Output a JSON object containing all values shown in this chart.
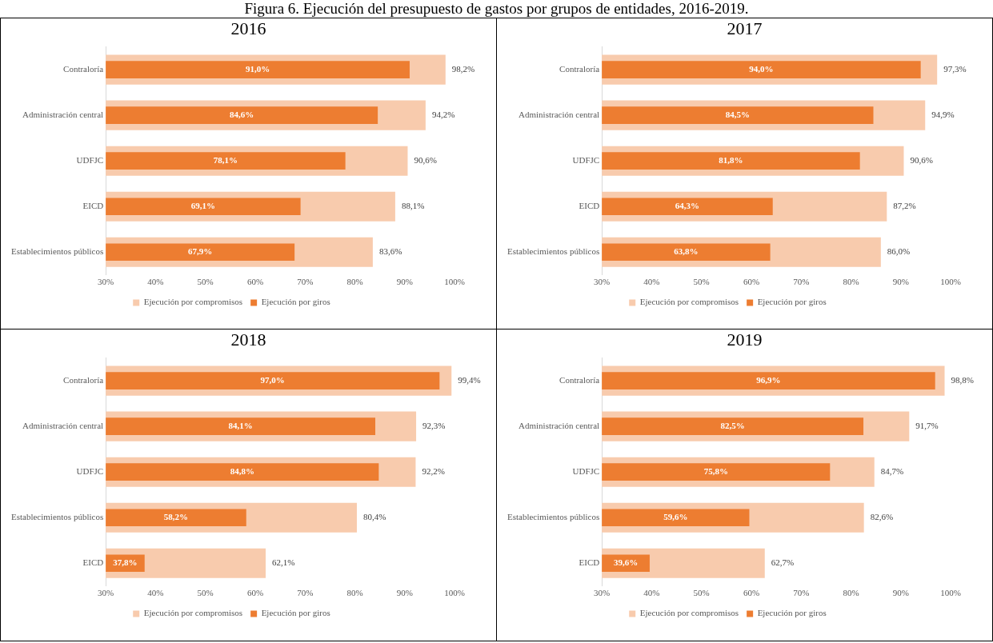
{
  "chart_data": [
    {
      "type": "bar",
      "orientation": "horizontal",
      "title": "2016",
      "annotations": [
        "Figura 6. Ejecución del presupuesto de gastos por grupos de entidades, 2016-2019."
      ],
      "categories": [
        "Contraloría",
        "Administración central",
        "UDFJC",
        "EICD",
        "Establecimientos públicos"
      ],
      "series": [
        {
          "name": "Ejecución por compromisos",
          "color": "#f8cbad",
          "values": [
            98.2,
            94.2,
            90.6,
            88.1,
            83.6
          ],
          "value_labels": [
            "98,2%",
            "94,2%",
            "90,6%",
            "88,1%",
            "83,6%"
          ]
        },
        {
          "name": "Ejecución por giros",
          "color": "#ed7d31",
          "values": [
            91.0,
            84.6,
            78.1,
            69.1,
            67.9
          ],
          "value_labels": [
            "91,0%",
            "84,6%",
            "78,1%",
            "69,1%",
            "67,9%"
          ]
        }
      ],
      "xlim": [
        30,
        100
      ],
      "xticks": [
        {
          "value": 30,
          "label": "30%"
        },
        {
          "value": 40,
          "label": "40%"
        },
        {
          "value": 50,
          "label": "50%"
        },
        {
          "value": 60,
          "label": "60%"
        },
        {
          "value": 70,
          "label": "70%"
        },
        {
          "value": 80,
          "label": "80%"
        },
        {
          "value": 90,
          "label": "90%"
        },
        {
          "value": 100,
          "label": "100%"
        }
      ],
      "grid": false,
      "legend": "bottom"
    },
    {
      "type": "bar",
      "orientation": "horizontal",
      "title": "2017",
      "categories": [
        "Contraloría",
        "Administración central",
        "UDFJC",
        "EICD",
        "Establecimientos públicos"
      ],
      "series": [
        {
          "name": "Ejecución por compromisos",
          "color": "#f8cbad",
          "values": [
            97.3,
            94.9,
            90.6,
            87.2,
            86.0
          ],
          "value_labels": [
            "97,3%",
            "94,9%",
            "90,6%",
            "87,2%",
            "86,0%"
          ]
        },
        {
          "name": "Ejecución por giros",
          "color": "#ed7d31",
          "values": [
            94.0,
            84.5,
            81.8,
            64.3,
            63.8
          ],
          "value_labels": [
            "94,0%",
            "84,5%",
            "81,8%",
            "64,3%",
            "63,8%"
          ]
        }
      ],
      "xlim": [
        30,
        100
      ],
      "xticks": [
        {
          "value": 30,
          "label": "30%"
        },
        {
          "value": 40,
          "label": "40%"
        },
        {
          "value": 50,
          "label": "50%"
        },
        {
          "value": 60,
          "label": "60%"
        },
        {
          "value": 70,
          "label": "70%"
        },
        {
          "value": 80,
          "label": "80%"
        },
        {
          "value": 90,
          "label": "90%"
        },
        {
          "value": 100,
          "label": "100%"
        }
      ],
      "grid": false,
      "legend": "bottom"
    },
    {
      "type": "bar",
      "orientation": "horizontal",
      "title": "2018",
      "categories": [
        "Contraloría",
        "Administración central",
        "UDFJC",
        "Establecimientos públicos",
        "EICD"
      ],
      "series": [
        {
          "name": "Ejecución por compromisos",
          "color": "#f8cbad",
          "values": [
            99.4,
            92.3,
            92.2,
            80.4,
            62.1
          ],
          "value_labels": [
            "99,4%",
            "92,3%",
            "92,2%",
            "80,4%",
            "62,1%"
          ]
        },
        {
          "name": "Ejecución por giros",
          "color": "#ed7d31",
          "values": [
            97.0,
            84.1,
            84.8,
            58.2,
            37.8
          ],
          "value_labels": [
            "97,0%",
            "84,1%",
            "84,8%",
            "58,2%",
            "37,8%"
          ]
        }
      ],
      "xlim": [
        30,
        100
      ],
      "xticks": [
        {
          "value": 30,
          "label": "30%"
        },
        {
          "value": 40,
          "label": "40%"
        },
        {
          "value": 50,
          "label": "50%"
        },
        {
          "value": 60,
          "label": "60%"
        },
        {
          "value": 70,
          "label": "70%"
        },
        {
          "value": 80,
          "label": "80%"
        },
        {
          "value": 90,
          "label": "90%"
        },
        {
          "value": 100,
          "label": "100%"
        }
      ],
      "grid": false,
      "legend": "bottom"
    },
    {
      "type": "bar",
      "orientation": "horizontal",
      "title": "2019",
      "categories": [
        "Contraloría",
        "Administración central",
        "UDFJC",
        "Establecimientos públicos",
        "EICD"
      ],
      "series": [
        {
          "name": "Ejecución por compromisos",
          "color": "#f8cbad",
          "values": [
            98.8,
            91.7,
            84.7,
            82.6,
            62.7
          ],
          "value_labels": [
            "98,8%",
            "91,7%",
            "84,7%",
            "82,6%",
            "62,7%"
          ]
        },
        {
          "name": "Ejecución por giros",
          "color": "#ed7d31",
          "values": [
            96.9,
            82.5,
            75.8,
            59.6,
            39.6
          ],
          "value_labels": [
            "96,9%",
            "82,5%",
            "75,8%",
            "59,6%",
            "39,6%"
          ]
        }
      ],
      "xlim": [
        30,
        100
      ],
      "xticks": [
        {
          "value": 30,
          "label": "30%"
        },
        {
          "value": 40,
          "label": "40%"
        },
        {
          "value": 50,
          "label": "50%"
        },
        {
          "value": 60,
          "label": "60%"
        },
        {
          "value": 70,
          "label": "70%"
        },
        {
          "value": 80,
          "label": "80%"
        },
        {
          "value": 90,
          "label": "90%"
        },
        {
          "value": 100,
          "label": "100%"
        }
      ],
      "grid": false,
      "legend": "bottom"
    }
  ]
}
